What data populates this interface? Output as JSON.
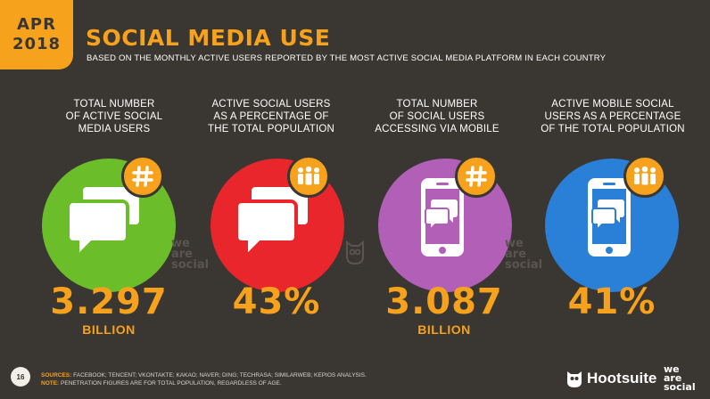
{
  "badge": {
    "month": "APR",
    "year": "2018"
  },
  "header": {
    "title": "SOCIAL MEDIA USE",
    "subtitle": "BASED ON THE MONTHLY ACTIVE USERS REPORTED BY THE MOST ACTIVE SOCIAL MEDIA PLATFORM IN EACH COUNTRY"
  },
  "stats": [
    {
      "label_lines": [
        "TOTAL NUMBER",
        "OF ACTIVE SOCIAL",
        "MEDIA USERS"
      ],
      "value": "3.297",
      "unit": "BILLION",
      "circle_color": "#6cbd2a",
      "icon": "speech-bubbles-icon",
      "badge_icon": "hashtag-icon"
    },
    {
      "label_lines": [
        "ACTIVE SOCIAL USERS",
        "AS A PERCENTAGE OF",
        "THE TOTAL POPULATION"
      ],
      "value": "43%",
      "unit": "",
      "circle_color": "#e8262b",
      "icon": "speech-bubbles-icon",
      "badge_icon": "people-icon"
    },
    {
      "label_lines": [
        "TOTAL NUMBER",
        "OF SOCIAL USERS",
        "ACCESSING VIA MOBILE"
      ],
      "value": "3.087",
      "unit": "BILLION",
      "circle_color": "#b25fb8",
      "icon": "mobile-phone-icon",
      "badge_icon": "hashtag-icon"
    },
    {
      "label_lines": [
        "ACTIVE MOBILE SOCIAL",
        "USERS AS A PERCENTAGE",
        "OF THE TOTAL POPULATION"
      ],
      "value": "41%",
      "unit": "",
      "circle_color": "#2a7fd6",
      "icon": "mobile-phone-icon",
      "badge_icon": "people-icon"
    }
  ],
  "watermark": {
    "line1": "we",
    "line2": "are",
    "line3": "social"
  },
  "footer": {
    "page_number": "16",
    "sources_label": "SOURCES:",
    "sources_text": "FACEBOOK; TENCENT; VKONTAKTE; KAKAO; NAVER; DING; TECHRASA; SIMILARWEB; KEPIOS ANALYSIS.",
    "note_label": "NOTE:",
    "note_text": "PENETRATION FIGURES ARE FOR TOTAL POPULATION, REGARDLESS OF AGE.",
    "hootsuite_label": "Hootsuite",
    "was_line1": "we",
    "was_line2": "are",
    "was_line3": "social"
  }
}
